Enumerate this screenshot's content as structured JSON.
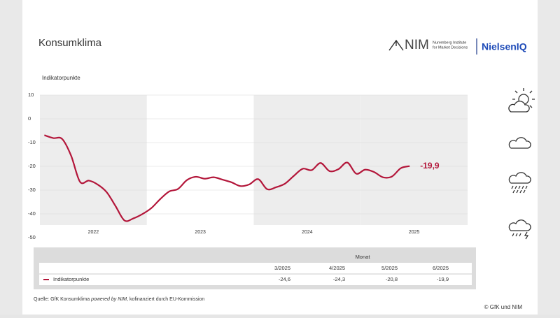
{
  "header": {
    "title": "Konsumklima",
    "logo_nim": "NIM",
    "logo_nim_sub": [
      "Nuremberg Institute",
      "for Market Decisions"
    ],
    "logo_niq": "NielsenIQ"
  },
  "chart_data": {
    "type": "line",
    "y_label": "Indikatorpunkte",
    "years": [
      {
        "label": "2022",
        "shaded": true
      },
      {
        "label": "2023",
        "shaded": false
      },
      {
        "label": "2024",
        "shaded": true
      },
      {
        "label": "2025",
        "shaded": true
      }
    ],
    "series": [
      {
        "name": "Indikatorpunkte",
        "color": "#b3163a",
        "values": [
          -6.9,
          -8.1,
          -8.5,
          -15.5,
          -26.5,
          -26.0,
          -27.7,
          -30.9,
          -36.8,
          -42.8,
          -41.9,
          -40.1,
          -37.6,
          -33.8,
          -30.6,
          -29.5,
          -25.8,
          -24.4,
          -25.2,
          -24.6,
          -25.6,
          -26.7,
          -28.3,
          -27.6,
          -25.4,
          -29.6,
          -28.8,
          -27.3,
          -24.0,
          -21.0,
          -21.6,
          -18.6,
          -22.0,
          -21.2,
          -18.4,
          -23.1,
          -21.4,
          -22.4,
          -24.6,
          -24.3,
          -20.8,
          -19.9
        ],
        "value_labels": [
          null,
          null,
          null,
          null,
          null,
          null,
          null,
          null,
          null,
          null,
          null,
          null,
          null,
          null,
          null,
          null,
          null,
          null,
          null,
          null,
          null,
          null,
          null,
          null,
          null,
          null,
          null,
          null,
          null,
          null,
          null,
          null,
          null,
          null,
          null,
          null,
          null,
          null,
          null,
          null,
          null,
          "-19,9"
        ]
      }
    ],
    "ylim": [
      -50,
      10
    ],
    "yticks": [
      10,
      0,
      -10,
      -20,
      -30,
      -40,
      -50
    ],
    "grid": true
  },
  "table": {
    "group_header": "Monat",
    "columns": [
      "3/2025",
      "4/2025",
      "5/2025",
      "6/2025"
    ],
    "rows": [
      [
        "Indikatorpunkte",
        "-24,6",
        "-24,3",
        "-20,8",
        "-19,9"
      ]
    ]
  },
  "footer": {
    "source": [
      "Quelle: GfK Konsumklima ",
      "powered by NIM",
      ", kofinanziert durch EU-Kommission"
    ],
    "copyright": "© GfK und NIM"
  }
}
